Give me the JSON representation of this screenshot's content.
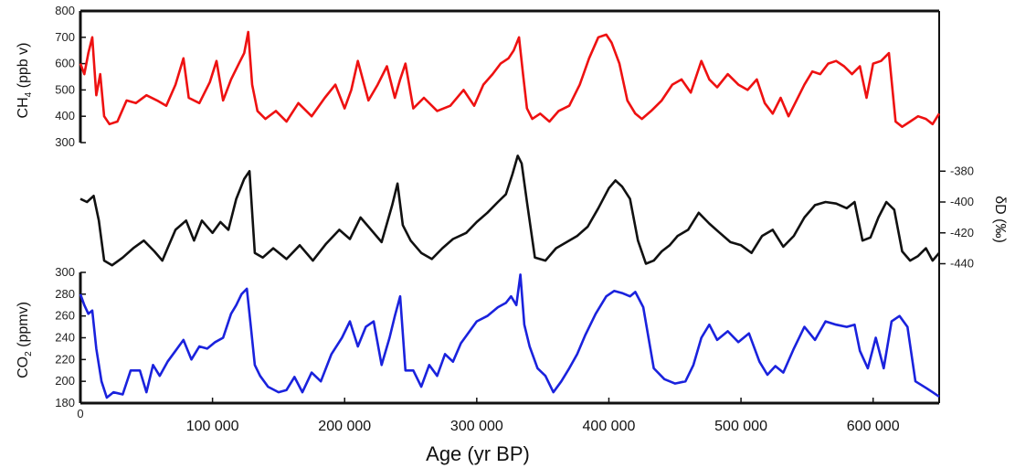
{
  "chart_data": {
    "type": "line",
    "xlabel": "Age (yr BP)",
    "xlim": [
      0,
      650000
    ],
    "x_ticks": [
      {
        "value": 0,
        "label": "0"
      },
      {
        "value": 100000,
        "label": "100 000"
      },
      {
        "value": 200000,
        "label": "200 000"
      },
      {
        "value": 300000,
        "label": "300 000"
      },
      {
        "value": 400000,
        "label": "400 000"
      },
      {
        "value": 500000,
        "label": "500 000"
      },
      {
        "value": 600000,
        "label": "600 000"
      }
    ],
    "panels": [
      {
        "id": "ch4",
        "ylabel_main": "CH",
        "ylabel_sub": "4",
        "ylabel_rest": " (ppb v)",
        "axis_side": "left",
        "ylim": [
          300,
          800
        ],
        "y_ticks": [
          "300",
          "400",
          "500",
          "600",
          "700",
          "800"
        ],
        "color": "#ee1111",
        "x": [
          0,
          3000,
          6000,
          9000,
          12000,
          15000,
          18000,
          22000,
          28000,
          35000,
          42000,
          50000,
          58000,
          65000,
          72000,
          78000,
          82000,
          90000,
          98000,
          103000,
          108000,
          114000,
          120000,
          124000,
          127000,
          130000,
          134000,
          140000,
          148000,
          156000,
          165000,
          175000,
          185000,
          193000,
          200000,
          205000,
          210000,
          218000,
          225000,
          232000,
          238000,
          242000,
          246000,
          252000,
          260000,
          270000,
          280000,
          290000,
          298000,
          305000,
          312000,
          318000,
          324000,
          328000,
          332000,
          335000,
          338000,
          342000,
          348000,
          355000,
          362000,
          370000,
          378000,
          385000,
          392000,
          398000,
          402000,
          408000,
          414000,
          420000,
          425000,
          432000,
          440000,
          448000,
          455000,
          462000,
          470000,
          476000,
          482000,
          490000,
          498000,
          505000,
          512000,
          518000,
          524000,
          530000,
          536000,
          542000,
          548000,
          554000,
          560000,
          566000,
          572000,
          578000,
          584000,
          590000,
          595000,
          600000,
          606000,
          612000,
          617000,
          622000,
          628000,
          634000,
          640000,
          645000,
          650000
        ],
        "y": [
          600,
          560,
          640,
          700,
          480,
          560,
          400,
          370,
          380,
          460,
          450,
          480,
          460,
          440,
          520,
          620,
          470,
          450,
          530,
          610,
          460,
          540,
          600,
          640,
          720,
          520,
          420,
          390,
          420,
          380,
          450,
          400,
          470,
          520,
          430,
          500,
          610,
          460,
          520,
          590,
          470,
          540,
          600,
          430,
          470,
          420,
          440,
          500,
          440,
          520,
          560,
          600,
          620,
          650,
          700,
          560,
          430,
          390,
          410,
          380,
          420,
          440,
          520,
          620,
          700,
          710,
          680,
          600,
          460,
          410,
          390,
          420,
          460,
          520,
          540,
          490,
          610,
          540,
          510,
          560,
          520,
          500,
          540,
          450,
          410,
          470,
          400,
          460,
          520,
          570,
          560,
          600,
          610,
          590,
          560,
          590,
          470,
          600,
          610,
          640,
          380,
          360,
          380,
          400,
          390,
          370,
          410
        ],
        "series_name": ""
      },
      {
        "id": "dd",
        "ylabel_main": "δD (‰)",
        "axis_side": "right",
        "ylim": [
          -448,
          -368
        ],
        "y_ticks": [
          "-380",
          "-400",
          "-420",
          "-440"
        ],
        "color": "#111111",
        "x": [
          0,
          5000,
          10000,
          14000,
          18000,
          24000,
          32000,
          40000,
          48000,
          56000,
          62000,
          66000,
          72000,
          80000,
          86000,
          92000,
          100000,
          106000,
          112000,
          118000,
          124000,
          128000,
          132000,
          138000,
          146000,
          156000,
          166000,
          176000,
          186000,
          196000,
          204000,
          212000,
          220000,
          228000,
          236000,
          240000,
          244000,
          250000,
          258000,
          266000,
          274000,
          282000,
          292000,
          300000,
          308000,
          316000,
          322000,
          327000,
          331000,
          334000,
          338000,
          344000,
          352000,
          360000,
          368000,
          376000,
          384000,
          392000,
          400000,
          405000,
          410000,
          416000,
          422000,
          428000,
          434000,
          440000,
          446000,
          452000,
          460000,
          468000,
          476000,
          484000,
          492000,
          500000,
          508000,
          516000,
          524000,
          532000,
          540000,
          548000,
          556000,
          564000,
          572000,
          580000,
          586000,
          592000,
          598000,
          604000,
          610000,
          616000,
          622000,
          628000,
          634000,
          640000,
          645000,
          650000
        ],
        "y": [
          -398,
          -400,
          -396,
          -412,
          -438,
          -441,
          -436,
          -430,
          -425,
          -432,
          -438,
          -430,
          -418,
          -412,
          -425,
          -412,
          -420,
          -413,
          -418,
          -398,
          -385,
          -380,
          -433,
          -436,
          -430,
          -437,
          -428,
          -438,
          -427,
          -418,
          -424,
          -410,
          -418,
          -426,
          -402,
          -388,
          -415,
          -425,
          -433,
          -437,
          -430,
          -424,
          -420,
          -413,
          -407,
          -400,
          -395,
          -382,
          -370,
          -375,
          -400,
          -436,
          -438,
          -430,
          -426,
          -422,
          -416,
          -404,
          -391,
          -386,
          -390,
          -398,
          -425,
          -440,
          -438,
          -432,
          -428,
          -422,
          -418,
          -407,
          -414,
          -420,
          -426,
          -428,
          -433,
          -422,
          -418,
          -429,
          -422,
          -410,
          -402,
          -400,
          -401,
          -404,
          -400,
          -425,
          -423,
          -410,
          -400,
          -405,
          -432,
          -438,
          -435,
          -430,
          -438,
          -433
        ],
        "series_name": ""
      },
      {
        "id": "co2",
        "ylabel_main": "CO",
        "ylabel_sub": "2",
        "ylabel_rest": " (ppmv)",
        "axis_side": "left",
        "ylim": [
          180,
          300
        ],
        "y_ticks": [
          "180",
          "200",
          "220",
          "240",
          "260",
          "280",
          "300"
        ],
        "color": "#1a22dd",
        "x": [
          0,
          3000,
          6000,
          9000,
          12000,
          16000,
          20000,
          25000,
          32000,
          38000,
          45000,
          50000,
          55000,
          60000,
          66000,
          72000,
          78000,
          84000,
          90000,
          96000,
          102000,
          108000,
          114000,
          118000,
          122000,
          126000,
          129000,
          132000,
          136000,
          142000,
          150000,
          156000,
          162000,
          168000,
          175000,
          182000,
          190000,
          198000,
          204000,
          210000,
          216000,
          222000,
          228000,
          234000,
          238000,
          242000,
          246000,
          252000,
          258000,
          264000,
          270000,
          276000,
          282000,
          288000,
          294000,
          300000,
          308000,
          316000,
          322000,
          326000,
          330000,
          333000,
          336000,
          340000,
          346000,
          352000,
          358000,
          364000,
          370000,
          376000,
          382000,
          390000,
          398000,
          404000,
          410000,
          416000,
          420000,
          426000,
          434000,
          442000,
          450000,
          458000,
          464000,
          470000,
          476000,
          482000,
          490000,
          498000,
          506000,
          514000,
          520000,
          526000,
          532000,
          540000,
          548000,
          556000,
          564000,
          572000,
          580000,
          586000,
          590000,
          596000,
          602000,
          608000,
          614000,
          620000,
          626000,
          632000,
          640000,
          645000,
          650000
        ],
        "y": [
          280,
          270,
          262,
          265,
          230,
          200,
          185,
          190,
          188,
          210,
          210,
          190,
          215,
          205,
          218,
          228,
          238,
          220,
          232,
          230,
          236,
          240,
          262,
          270,
          280,
          285,
          250,
          215,
          205,
          195,
          190,
          192,
          204,
          190,
          208,
          200,
          225,
          240,
          255,
          232,
          250,
          255,
          215,
          240,
          260,
          278,
          210,
          210,
          195,
          215,
          205,
          225,
          218,
          235,
          245,
          255,
          260,
          268,
          272,
          278,
          270,
          298,
          252,
          232,
          212,
          205,
          190,
          200,
          212,
          225,
          242,
          262,
          278,
          283,
          281,
          278,
          282,
          268,
          212,
          202,
          198,
          200,
          215,
          240,
          252,
          238,
          246,
          236,
          244,
          218,
          206,
          214,
          208,
          230,
          250,
          238,
          255,
          252,
          250,
          252,
          228,
          212,
          240,
          212,
          255,
          260,
          250,
          200,
          194,
          190,
          186
        ],
        "series_name": ""
      }
    ]
  }
}
